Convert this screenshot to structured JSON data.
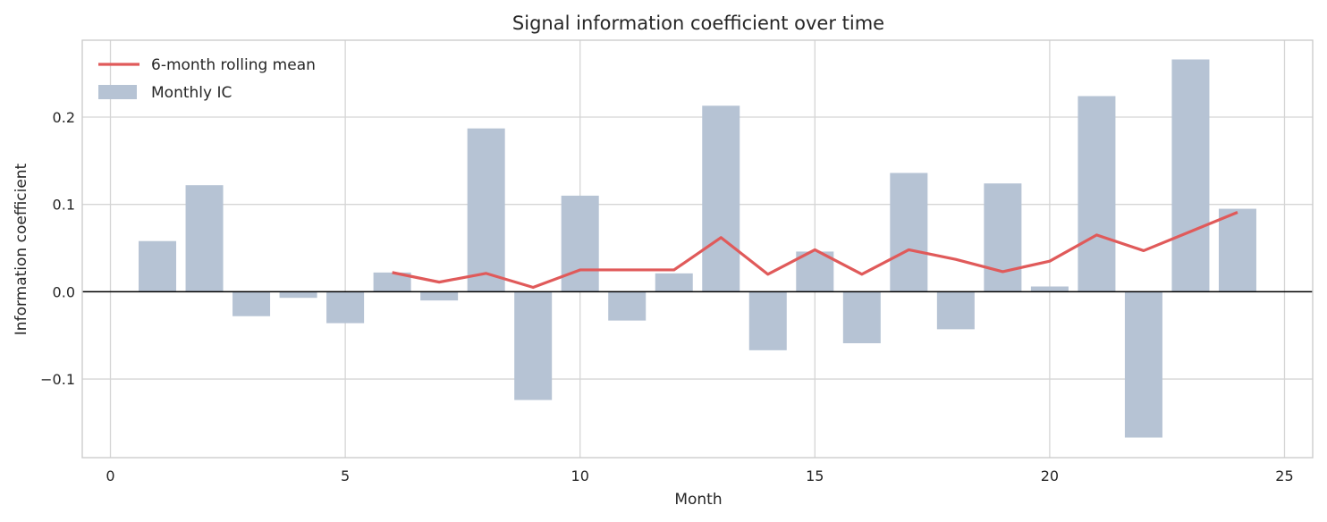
{
  "chart_data": {
    "type": "bar",
    "title": "Signal information coefficient over time",
    "xlabel": "Month",
    "ylabel": "Information coefficient",
    "xlim": [
      -0.6,
      25.6
    ],
    "ylim": [
      -0.19,
      0.288
    ],
    "xticks": [
      0,
      5,
      10,
      15,
      20,
      25
    ],
    "xtick_labels": [
      "0",
      "5",
      "10",
      "15",
      "20",
      "25"
    ],
    "yticks": [
      -0.1,
      0.0,
      0.1,
      0.2
    ],
    "ytick_labels": [
      "−0.1",
      "0.0",
      "0.1",
      "0.2"
    ],
    "grid": true,
    "legend_position": "top-left",
    "zero_line": true,
    "series": [
      {
        "name": "Monthly IC",
        "kind": "bar",
        "color": "#b6c3d4",
        "x": [
          1,
          2,
          3,
          4,
          5,
          6,
          7,
          8,
          9,
          10,
          11,
          12,
          13,
          14,
          15,
          16,
          17,
          18,
          19,
          20,
          21,
          22,
          23,
          24
        ],
        "values": [
          0.058,
          0.122,
          -0.028,
          -0.007,
          -0.036,
          0.022,
          -0.01,
          0.187,
          -0.124,
          0.11,
          -0.033,
          0.021,
          0.213,
          -0.067,
          0.046,
          -0.059,
          0.136,
          -0.043,
          0.124,
          0.006,
          0.224,
          -0.167,
          0.266,
          0.095
        ]
      },
      {
        "name": "6-month rolling mean",
        "kind": "line",
        "color": "#e05a5a",
        "x": [
          6,
          7,
          8,
          9,
          10,
          11,
          12,
          13,
          14,
          15,
          16,
          17,
          18,
          19,
          20,
          21,
          22,
          23,
          24
        ],
        "values": [
          0.022,
          0.011,
          0.021,
          0.005,
          0.025,
          0.025,
          0.025,
          0.062,
          0.02,
          0.048,
          0.02,
          0.048,
          0.037,
          0.023,
          0.035,
          0.065,
          0.047,
          0.069,
          0.091
        ]
      }
    ]
  }
}
